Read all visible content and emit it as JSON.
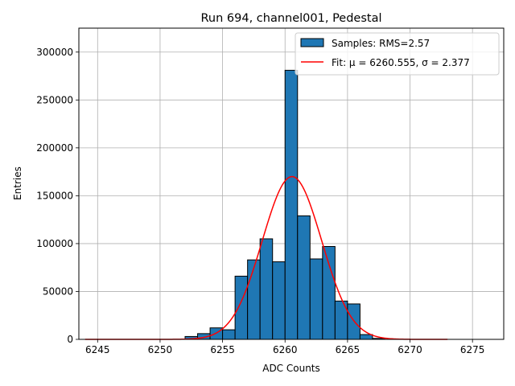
{
  "chart_data": {
    "type": "bar",
    "title": "Run 694, channel001, Pedestal",
    "xlabel": "ADC Counts",
    "ylabel": "Entries",
    "xlim": [
      6243.5,
      6277.5
    ],
    "ylim": [
      0,
      325000
    ],
    "xticks": [
      6245,
      6250,
      6255,
      6260,
      6265,
      6270,
      6275
    ],
    "yticks": [
      0,
      50000,
      100000,
      150000,
      200000,
      250000,
      300000
    ],
    "grid": true,
    "legend_position": "top-right",
    "bin_width": 1,
    "histogram": {
      "name": "Samples: RMS=2.57",
      "color": "#1f77b4",
      "bins": [
        {
          "x": 6252,
          "count": 3000
        },
        {
          "x": 6253,
          "count": 6000
        },
        {
          "x": 6254,
          "count": 12000
        },
        {
          "x": 6255,
          "count": 10000
        },
        {
          "x": 6256,
          "count": 66000
        },
        {
          "x": 6257,
          "count": 83000
        },
        {
          "x": 6258,
          "count": 105000
        },
        {
          "x": 6259,
          "count": 81000
        },
        {
          "x": 6260,
          "count": 281000
        },
        {
          "x": 6261,
          "count": 129000
        },
        {
          "x": 6262,
          "count": 84000
        },
        {
          "x": 6263,
          "count": 97000
        },
        {
          "x": 6264,
          "count": 40000
        },
        {
          "x": 6265,
          "count": 37000
        },
        {
          "x": 6266,
          "count": 5000
        },
        {
          "x": 6267,
          "count": 1000
        }
      ]
    },
    "fit": {
      "label": "Fit: μ = 6260.555, σ = 2.377",
      "color": "#ff0000",
      "mu": 6260.555,
      "sigma": 2.377,
      "amplitude": 170000,
      "x_range": [
        6244,
        6273
      ]
    }
  }
}
